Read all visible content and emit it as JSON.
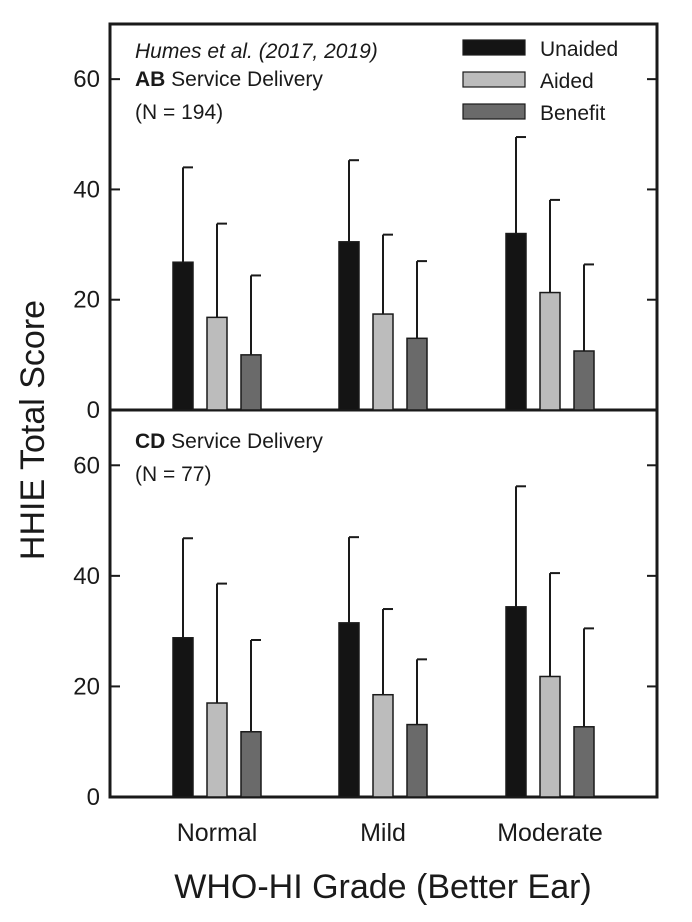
{
  "chart_data": {
    "type": "bar",
    "xlabel": "WHO-HI Grade (Better Ear)",
    "ylabel": "HHIE Total Score",
    "categories": [
      "Normal",
      "Mild",
      "Moderate"
    ],
    "legend": {
      "placement": "top-right",
      "entries": [
        {
          "name": "Unaided",
          "color": "#141414"
        },
        {
          "name": "Aided",
          "color": "#bcbcbc"
        },
        {
          "name": "Benefit",
          "color": "#6a6a6a"
        }
      ]
    },
    "grid": false,
    "panels": [
      {
        "citation": "Humes et al. (2017, 2019)",
        "label_bold": "AB",
        "label_rest": " Service Delivery",
        "n_label": "(N = 194)",
        "ylim": [
          0,
          70
        ],
        "yticks": [
          0,
          20,
          40,
          60
        ],
        "series": [
          {
            "name": "Unaided",
            "values": [
              26.8,
              30.5,
              32.0
            ],
            "error": [
              17.2,
              14.8,
              17.5
            ]
          },
          {
            "name": "Aided",
            "values": [
              16.8,
              17.4,
              21.3
            ],
            "error": [
              17.0,
              14.4,
              16.8
            ]
          },
          {
            "name": "Benefit",
            "values": [
              10.0,
              13.0,
              10.7
            ],
            "error": [
              14.4,
              14.0,
              15.7
            ]
          }
        ]
      },
      {
        "citation": "",
        "label_bold": "CD",
        "label_rest": " Service Delivery",
        "n_label": "(N = 77)",
        "ylim": [
          0,
          70
        ],
        "yticks": [
          0,
          20,
          40,
          60
        ],
        "series": [
          {
            "name": "Unaided",
            "values": [
              28.8,
              31.5,
              34.4
            ],
            "error": [
              18.0,
              15.5,
              21.8
            ]
          },
          {
            "name": "Aided",
            "values": [
              17.0,
              18.5,
              21.8
            ],
            "error": [
              21.6,
              15.5,
              18.7
            ]
          },
          {
            "name": "Benefit",
            "values": [
              11.8,
              13.1,
              12.7
            ],
            "error": [
              16.6,
              11.8,
              17.8
            ]
          }
        ]
      }
    ]
  }
}
